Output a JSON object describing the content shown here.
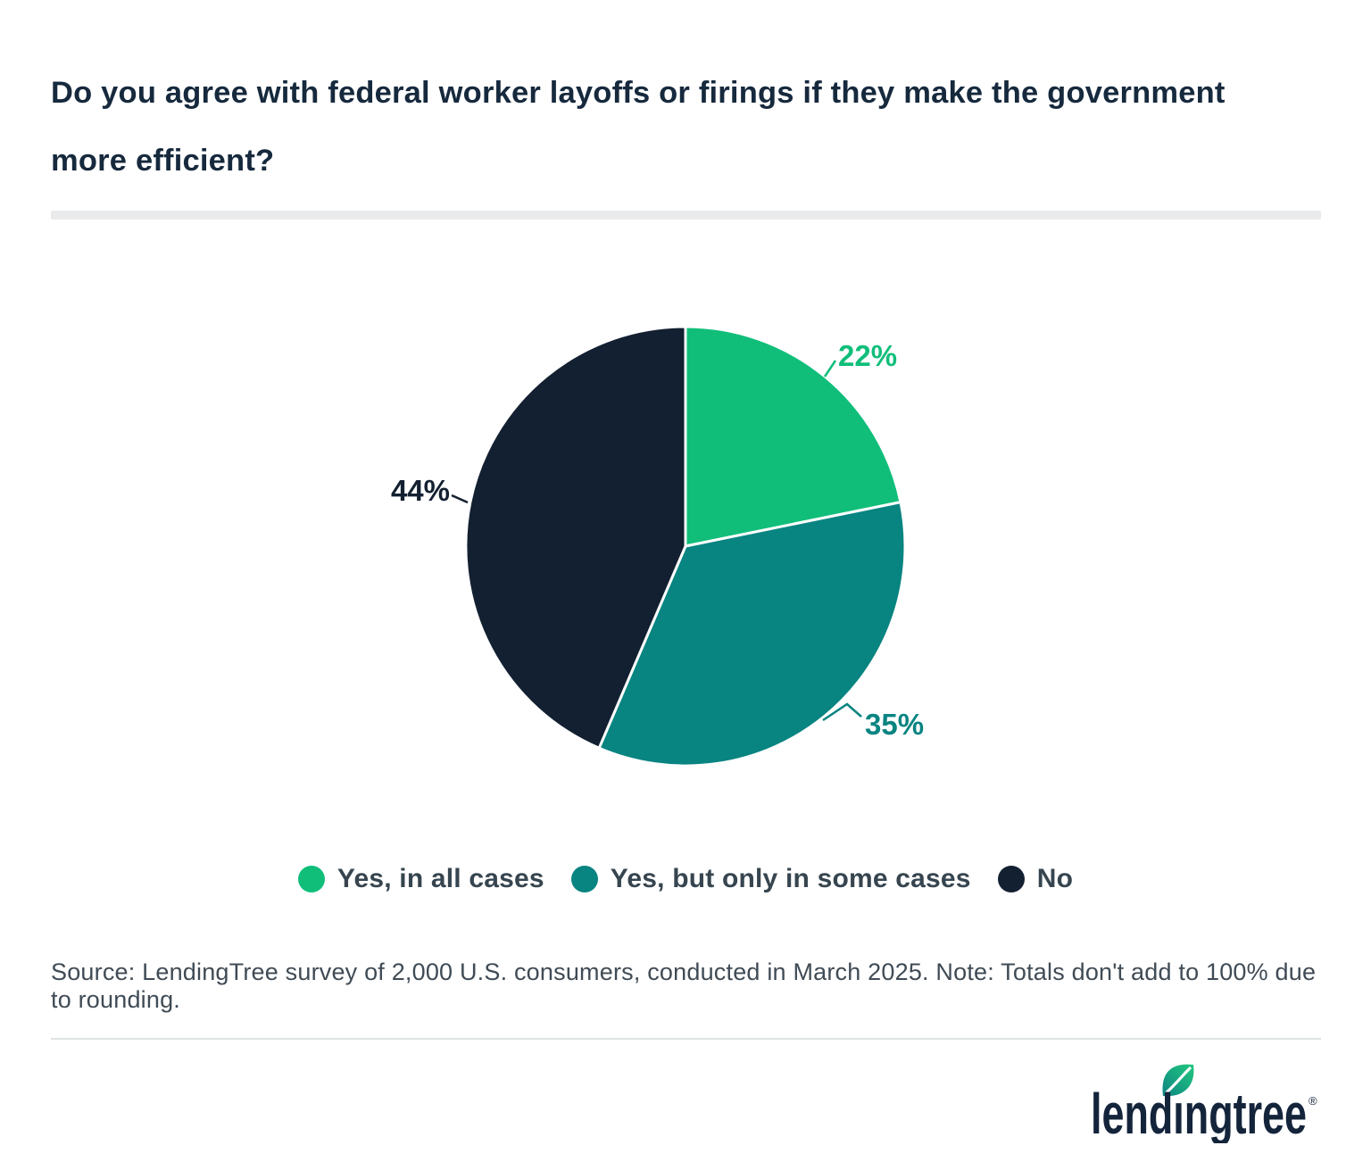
{
  "header": {
    "title": "Do you agree with federal worker layoffs or firings if they make the government more efficient?"
  },
  "chart_data": {
    "type": "pie",
    "title": "Do you agree with federal worker layoffs or firings if they make the government more efficient?",
    "series": [
      {
        "name": "Yes, in all cases",
        "value": 22,
        "label": "22%",
        "color": "#10BE7A"
      },
      {
        "name": "Yes, but only in some cases",
        "value": 35,
        "label": "35%",
        "color": "#088481"
      },
      {
        "name": "No",
        "value": 44,
        "label": "44%",
        "color": "#132031"
      }
    ],
    "start_angle_deg": 0,
    "direction": "clockwise",
    "legend_position": "bottom"
  },
  "footer": {
    "source_text": "Source: LendingTree survey of 2,000 U.S. consumers, conducted in March 2025. Note: Totals don't add to 100% due to rounding.",
    "logo_text": "lendingtree",
    "registered_mark": "®"
  },
  "colors": {
    "background": "#FFFFFF",
    "title_text": "#16293D",
    "legend_text": "#36454F",
    "source_text": "#404B55",
    "divider_bar": "#E9EAEB",
    "divider_line": "#DFE3E4",
    "logo_navy": "#14243B",
    "leaf_green": "#21C87E",
    "leaf_teal": "#0E8583"
  }
}
